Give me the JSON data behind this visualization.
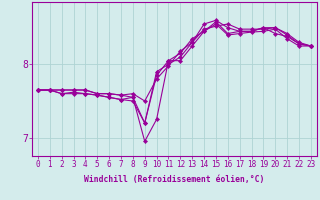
{
  "xlabel": "Windchill (Refroidissement éolien,°C)",
  "background_color": "#d4ecec",
  "grid_color": "#aed4d4",
  "line_color": "#990099",
  "xlim": [
    -0.5,
    23.5
  ],
  "ylim": [
    6.75,
    8.85
  ],
  "xticks": [
    0,
    1,
    2,
    3,
    4,
    5,
    6,
    7,
    8,
    9,
    10,
    11,
    12,
    13,
    14,
    15,
    16,
    17,
    18,
    19,
    20,
    21,
    22,
    23
  ],
  "yticks": [
    7,
    8
  ],
  "lines": [
    [
      7.65,
      7.65,
      7.6,
      7.6,
      7.6,
      7.58,
      7.55,
      7.52,
      7.55,
      6.95,
      7.25,
      8.05,
      8.05,
      8.25,
      8.45,
      8.55,
      8.4,
      8.42,
      8.44,
      8.45,
      8.48,
      8.35,
      8.25,
      8.25
    ],
    [
      7.65,
      7.65,
      7.6,
      7.62,
      7.6,
      7.58,
      7.55,
      7.52,
      7.5,
      7.2,
      7.9,
      8.0,
      8.1,
      8.3,
      8.55,
      8.6,
      8.5,
      8.45,
      8.45,
      8.5,
      8.42,
      8.38,
      8.28,
      8.25
    ],
    [
      7.65,
      7.65,
      7.65,
      7.65,
      7.65,
      7.6,
      7.6,
      7.58,
      7.6,
      7.5,
      7.8,
      7.98,
      8.18,
      8.3,
      8.48,
      8.52,
      8.55,
      8.48,
      8.48,
      8.48,
      8.5,
      8.42,
      8.3,
      8.25
    ],
    [
      7.65,
      7.65,
      7.65,
      7.65,
      7.65,
      7.6,
      7.6,
      7.58,
      7.55,
      7.2,
      7.85,
      8.05,
      8.15,
      8.35,
      8.45,
      8.58,
      8.42,
      8.45,
      8.45,
      8.5,
      8.5,
      8.4,
      8.28,
      8.25
    ]
  ],
  "tick_fontsize": 5.5,
  "xlabel_fontsize": 5.8,
  "ylabel_fontsize": 7,
  "linewidth": 0.8,
  "markersize": 2.2
}
